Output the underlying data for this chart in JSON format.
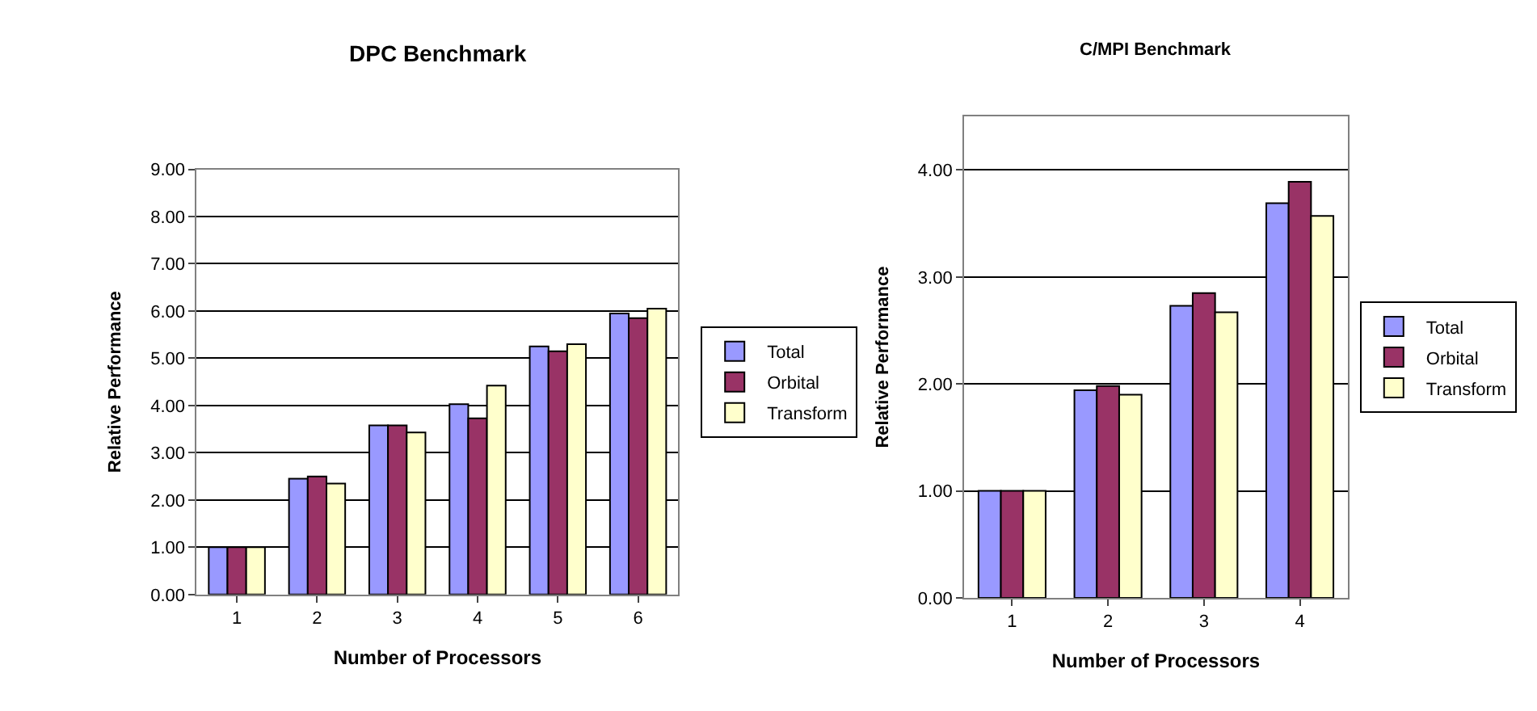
{
  "chart_data": [
    {
      "type": "bar",
      "title": "DPC Benchmark",
      "xlabel": "Number of Processors",
      "ylabel": "Relative Performance",
      "categories": [
        "1",
        "2",
        "3",
        "4",
        "5",
        "6"
      ],
      "series": [
        {
          "name": "Total",
          "color": "#9999ff",
          "values": [
            1,
            2.45,
            3.58,
            4.03,
            5.25,
            5.95
          ]
        },
        {
          "name": "Orbital",
          "color": "#993366",
          "values": [
            1,
            2.5,
            3.58,
            3.73,
            5.15,
            5.85
          ]
        },
        {
          "name": "Transform",
          "color": "#ffffcc",
          "values": [
            1,
            2.35,
            3.43,
            4.42,
            5.3,
            6.05
          ]
        }
      ],
      "ylim": [
        0,
        9
      ],
      "yticks": [
        {
          "value": 0,
          "label": "0.00"
        },
        {
          "value": 1,
          "label": "1.00"
        },
        {
          "value": 2,
          "label": "2.00"
        },
        {
          "value": 3,
          "label": "3.00"
        },
        {
          "value": 4,
          "label": "4.00"
        },
        {
          "value": 5,
          "label": "5.00"
        },
        {
          "value": 6,
          "label": "6.00"
        },
        {
          "value": 7,
          "label": "7.00"
        },
        {
          "value": 8,
          "label": "8.00"
        },
        {
          "value": 9,
          "label": "9.00"
        }
      ],
      "grid": "y",
      "legend": "right"
    },
    {
      "type": "bar",
      "title": "C/MPI Benchmark",
      "xlabel": "Number of Processors",
      "ylabel": "Relative Performance",
      "categories": [
        "1",
        "2",
        "3",
        "4"
      ],
      "series": [
        {
          "name": "Total",
          "color": "#9999ff",
          "values": [
            1,
            1.94,
            2.73,
            3.69
          ]
        },
        {
          "name": "Orbital",
          "color": "#993366",
          "values": [
            1,
            1.98,
            2.85,
            3.89
          ]
        },
        {
          "name": "Transform",
          "color": "#ffffcc",
          "values": [
            1,
            1.9,
            2.67,
            3.57
          ]
        }
      ],
      "ylim": [
        0,
        4.5
      ],
      "yticks": [
        {
          "value": 0,
          "label": "0.00"
        },
        {
          "value": 1,
          "label": "1.00"
        },
        {
          "value": 2,
          "label": "2.00"
        },
        {
          "value": 3,
          "label": "3.00"
        },
        {
          "value": 4,
          "label": "4.00"
        }
      ],
      "grid": "y",
      "legend": "right"
    }
  ]
}
